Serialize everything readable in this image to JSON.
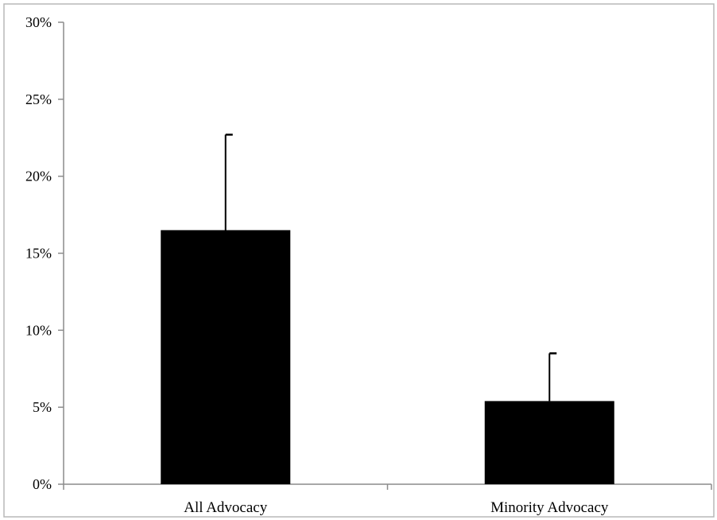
{
  "chart_data": {
    "type": "bar",
    "title": "",
    "xlabel": "",
    "ylabel": "",
    "categories": [
      "All Advocacy",
      "Minority Advocacy"
    ],
    "values": [
      16.5,
      5.4
    ],
    "error_upper": [
      22.7,
      8.5
    ],
    "ylim": [
      0,
      30
    ],
    "y_ticks": [
      0,
      5,
      10,
      15,
      20,
      25,
      30
    ],
    "y_tick_labels": [
      "0%",
      "5%",
      "10%",
      "15%",
      "20%",
      "25%",
      "30%"
    ],
    "unit": "%",
    "grid": false,
    "legend": "none",
    "bar_color": "#000000"
  }
}
